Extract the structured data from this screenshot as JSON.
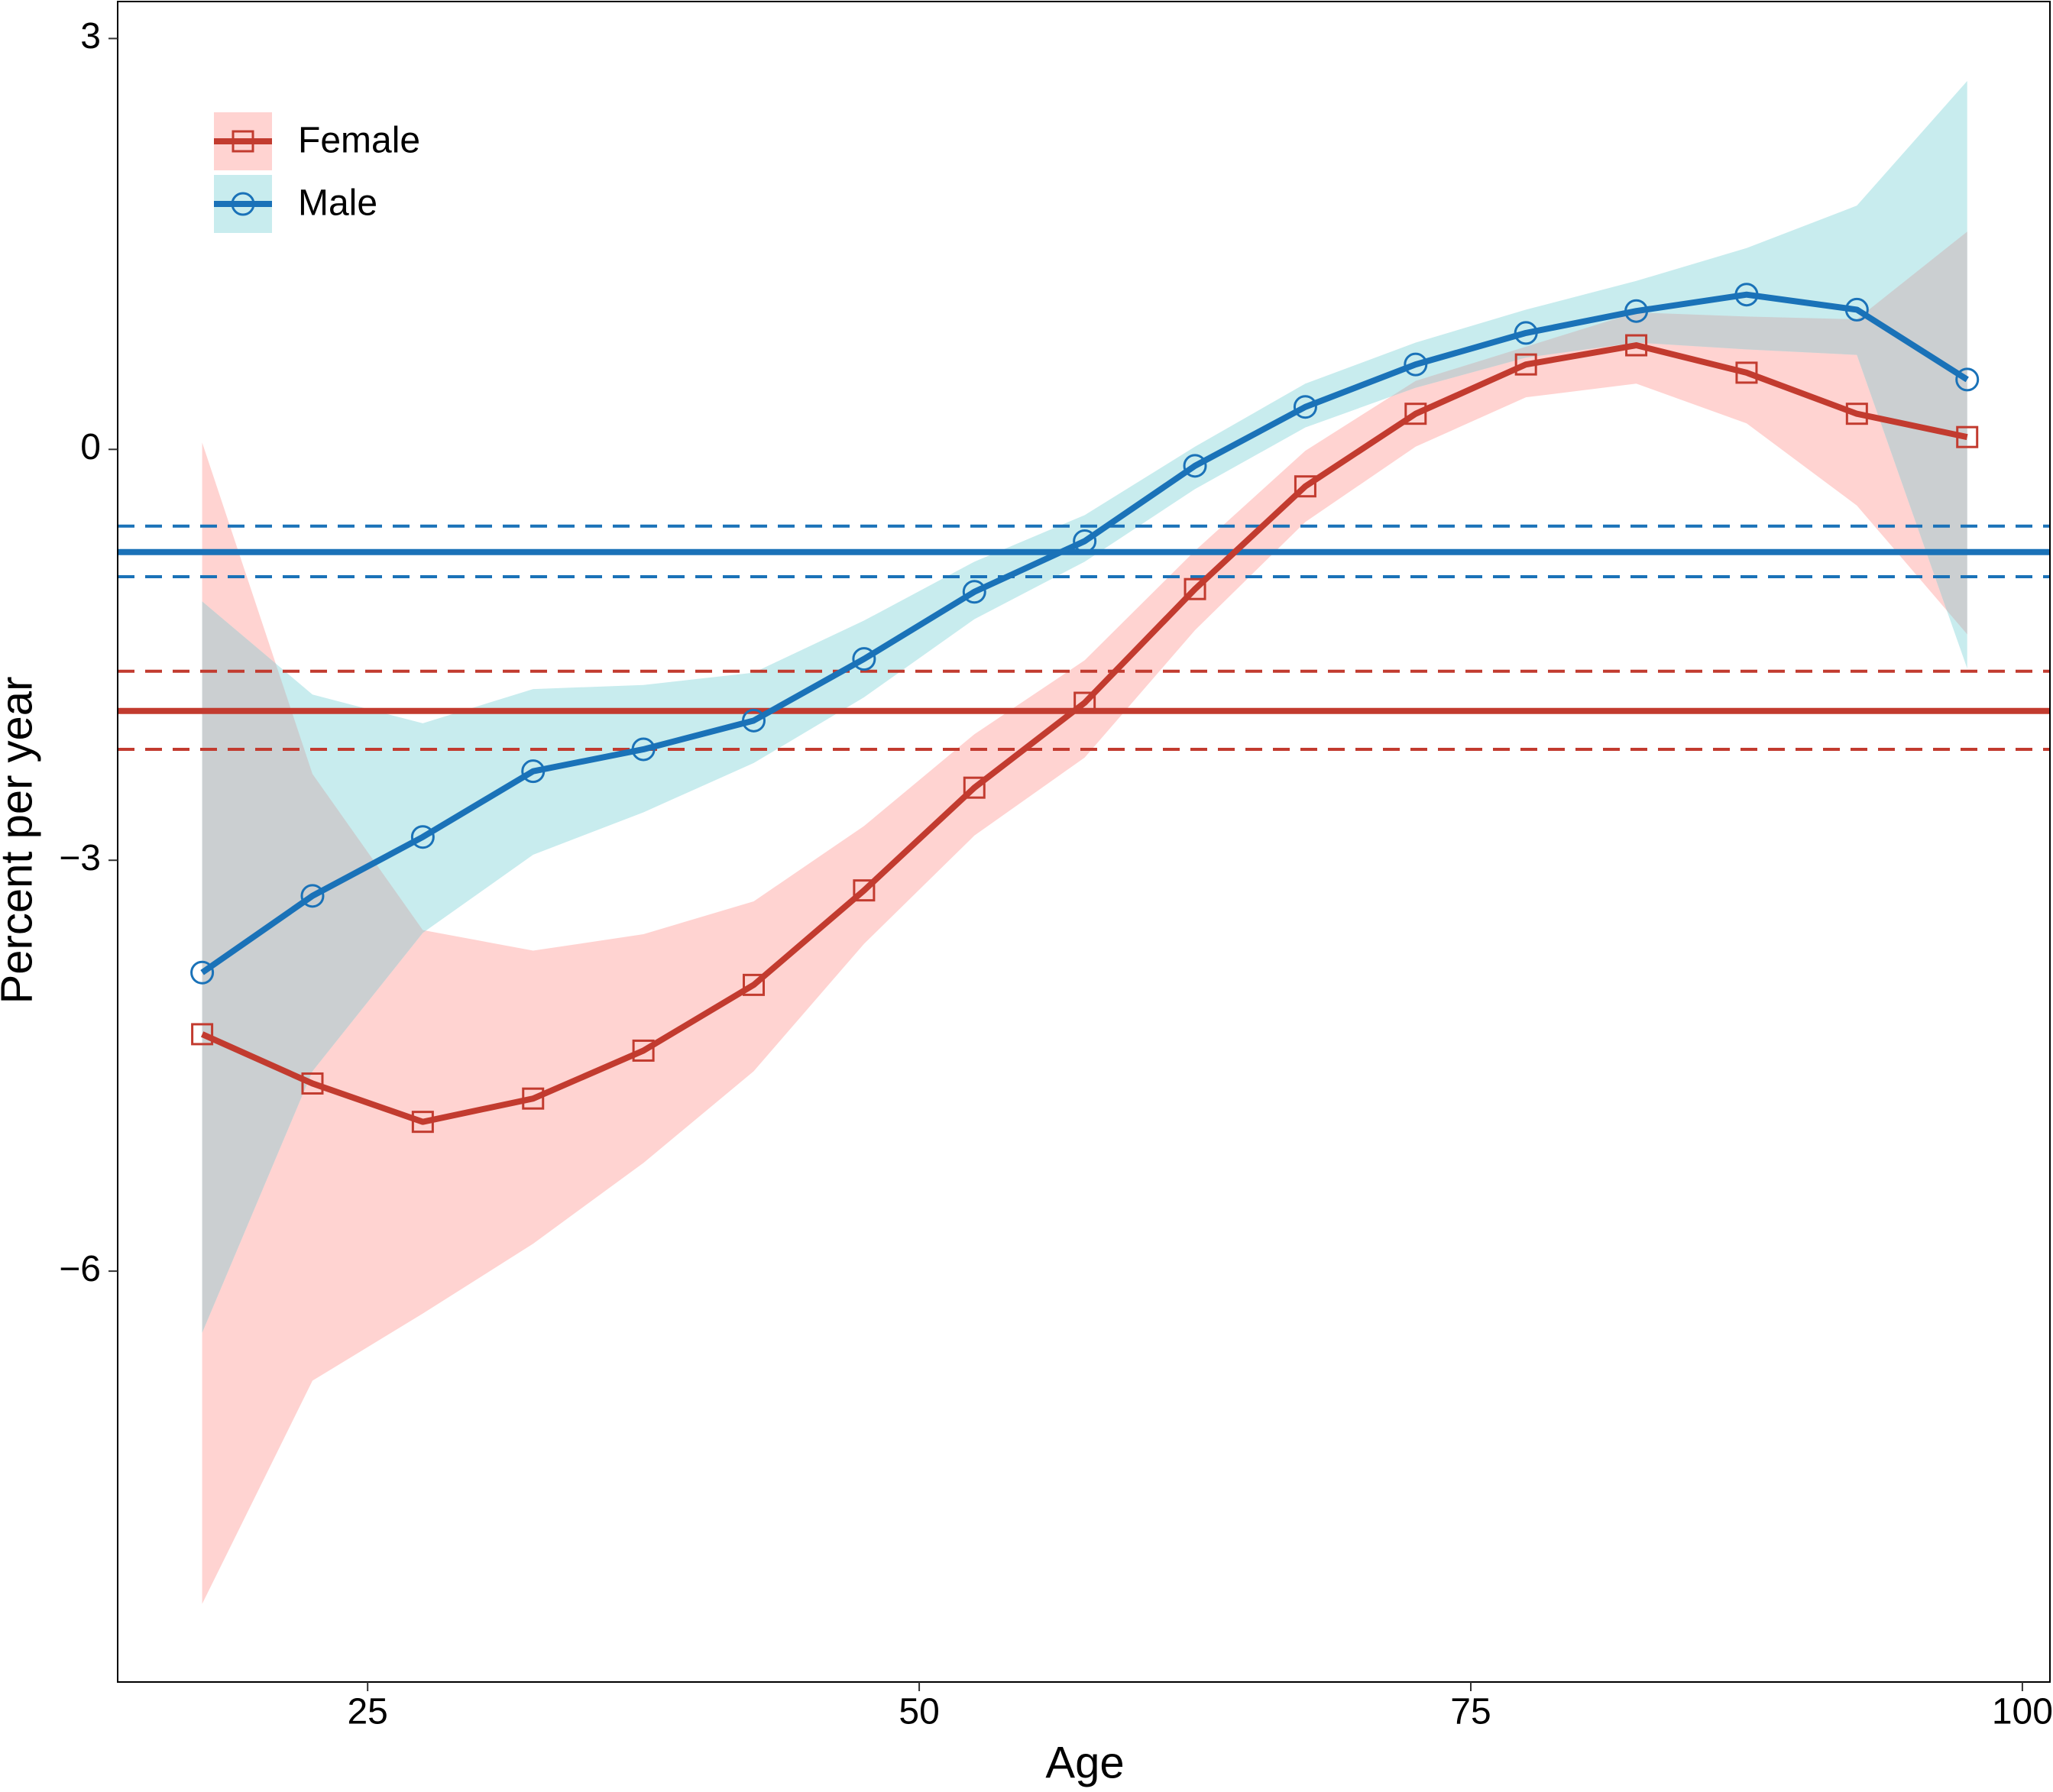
{
  "chart_data": {
    "type": "line",
    "xlabel": "Age",
    "ylabel": "Percent per year",
    "x": [
      17.5,
      22.5,
      27.5,
      32.5,
      37.5,
      42.5,
      47.5,
      52.5,
      57.5,
      62.5,
      67.5,
      72.5,
      77.5,
      82.5,
      87.5,
      92.5,
      97.5
    ],
    "series": [
      {
        "name": "Female",
        "color": "#c23b2f",
        "band_color": "#ffd3d1",
        "marker": "square",
        "values": [
          -4.27,
          -4.63,
          -4.91,
          -4.74,
          -4.39,
          -3.91,
          -3.22,
          -2.47,
          -1.85,
          -1.02,
          -0.27,
          0.26,
          0.62,
          0.76,
          0.56,
          0.26,
          0.09
        ],
        "lower": [
          -8.43,
          -6.8,
          -6.31,
          -5.8,
          -5.21,
          -4.54,
          -3.61,
          -2.82,
          -2.25,
          -1.32,
          -0.53,
          0.02,
          0.38,
          0.48,
          0.19,
          -0.41,
          -1.35
        ],
        "upper": [
          0.05,
          -2.37,
          -3.51,
          -3.66,
          -3.54,
          -3.3,
          -2.75,
          -2.08,
          -1.54,
          -0.74,
          -0.01,
          0.5,
          0.75,
          1.0,
          0.97,
          0.95,
          1.59
        ],
        "mean": -1.91,
        "mean_lower": -2.19,
        "mean_upper": -1.62
      },
      {
        "name": "Male",
        "color": "#1a72b8",
        "band_color": "#c8ecee",
        "marker": "circle",
        "values": [
          -3.82,
          -3.26,
          -2.83,
          -2.35,
          -2.19,
          -1.98,
          -1.53,
          -1.04,
          -0.67,
          -0.12,
          0.31,
          0.62,
          0.85,
          1.01,
          1.13,
          1.02,
          0.51
        ],
        "lower": [
          -6.45,
          -4.54,
          -3.53,
          -2.96,
          -2.65,
          -2.29,
          -1.81,
          -1.24,
          -0.82,
          -0.29,
          0.16,
          0.45,
          0.67,
          0.78,
          0.73,
          0.69,
          -1.6
        ],
        "upper": [
          -1.11,
          -1.79,
          -2.0,
          -1.75,
          -1.72,
          -1.63,
          -1.25,
          -0.82,
          -0.48,
          0.02,
          0.48,
          0.78,
          1.02,
          1.23,
          1.47,
          1.78,
          2.69
        ],
        "mean": -0.75,
        "mean_lower": -0.93,
        "mean_upper": -0.56
      }
    ],
    "overlap_color": "#cbcfd1",
    "xlim": [
      13.67,
      101.25
    ],
    "xticks": [
      25,
      50,
      75,
      100
    ],
    "ylim": [
      -9.0,
      3.27
    ],
    "yticks": [
      {
        "value": -6,
        "label": "−6"
      },
      {
        "value": -3,
        "label": "−3"
      },
      0,
      3
    ],
    "grid": false,
    "legend": "top-left"
  }
}
